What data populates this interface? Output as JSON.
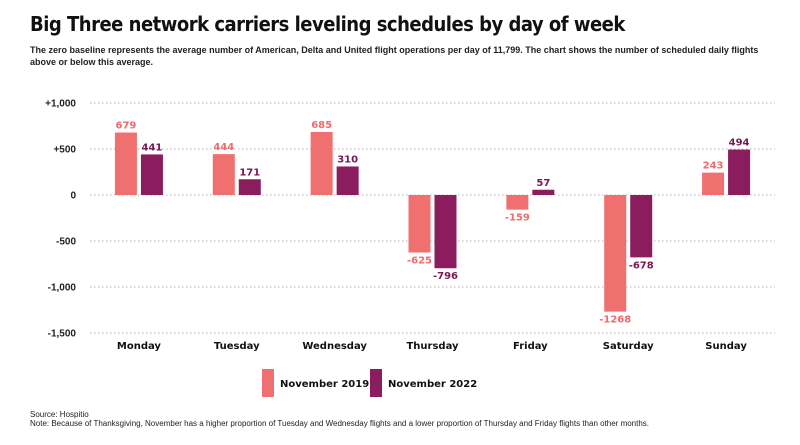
{
  "title": "Big Three network carriers leveling schedules by day of week",
  "subtitle": "The zero baseline represents the average number of American, Delta and United flight operations per day of 11,799. The chart shows the number of scheduled daily flights above or below this average.",
  "source": "Source: Hospitio",
  "note": "Note: Because of Thanksgiving, November has a higher proportion of Tuesday and Wednesday flights and a lower proportion of Thursday and Friday flights than other months.",
  "chart_data": {
    "type": "bar",
    "title": "Big Three network carriers leveling schedules by day of week",
    "xlabel": "",
    "ylabel": "",
    "ylim": [
      -1500,
      1000
    ],
    "y_ticks": [
      {
        "value": 1000,
        "label": "+1,000"
      },
      {
        "value": 500,
        "label": "+500"
      },
      {
        "value": 0,
        "label": "0"
      },
      {
        "value": -500,
        "label": "-500"
      },
      {
        "value": -1000,
        "label": "-1,000"
      },
      {
        "value": -1500,
        "label": "-1,500"
      }
    ],
    "grid": "horizontal dotted",
    "legend_position": "bottom-center",
    "categories": [
      "Monday",
      "Tuesday",
      "Wednesday",
      "Thursday",
      "Friday",
      "Saturday",
      "Sunday"
    ],
    "series": [
      {
        "name": "November 2019",
        "color": "#f07070",
        "label_color": "#ef6b6b",
        "values": [
          679,
          444,
          685,
          -625,
          -159,
          -1268,
          243
        ]
      },
      {
        "name": "November 2022",
        "color": "#8b1c5e",
        "label_color": "#7a1653",
        "values": [
          441,
          171,
          310,
          -796,
          57,
          -678,
          494
        ]
      }
    ]
  }
}
